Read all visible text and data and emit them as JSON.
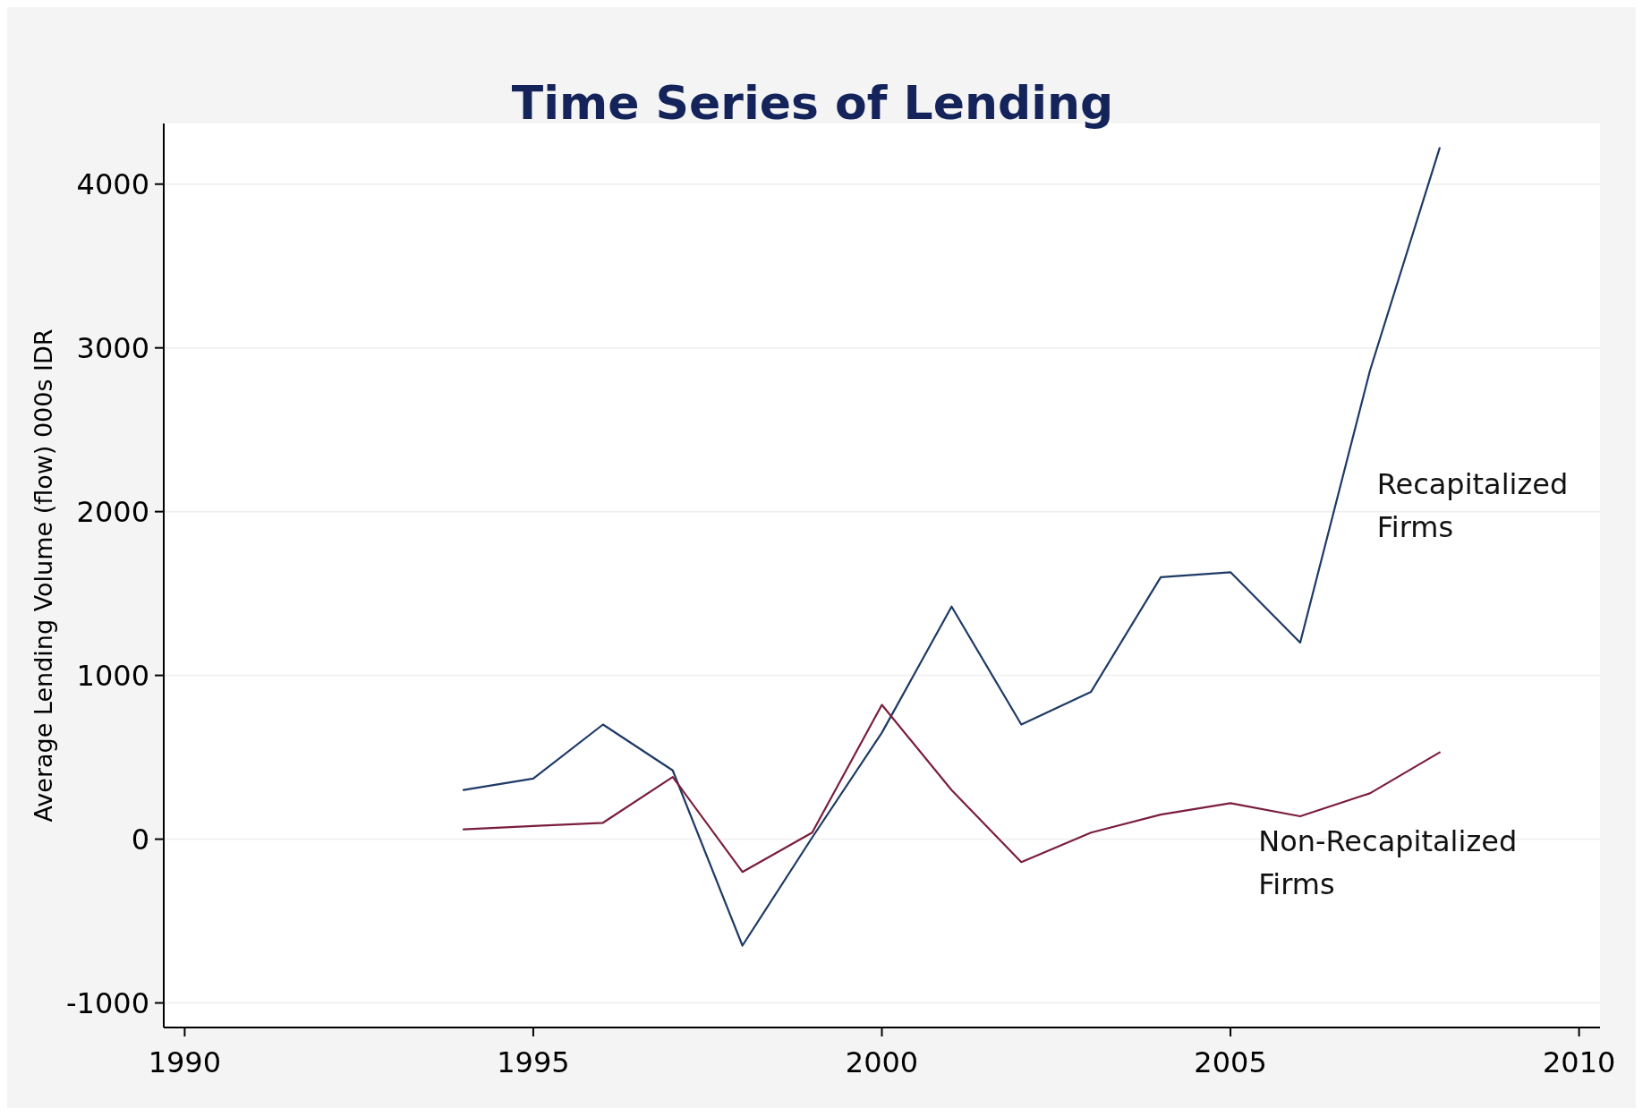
{
  "chart_data": {
    "type": "line",
    "title": "Time Series of Lending",
    "ylabel": "Average Lending Volume (flow) 000s IDR",
    "x": [
      1994,
      1995,
      1996,
      1997,
      1998,
      1999,
      2000,
      2001,
      2002,
      2003,
      2004,
      2005,
      2006,
      2007,
      2008
    ],
    "series": [
      {
        "name": "Recapitalized Firms",
        "color": "#1e3a66",
        "values": [
          300,
          370,
          700,
          420,
          -650,
          10,
          650,
          1420,
          700,
          900,
          1600,
          1630,
          1200,
          2860,
          4220
        ]
      },
      {
        "name": "Non-Recapitalized Firms",
        "color": "#7a1e3c",
        "values": [
          60,
          80,
          100,
          380,
          -200,
          40,
          820,
          300,
          -140,
          40,
          150,
          220,
          140,
          280,
          530
        ]
      }
    ],
    "xlim": [
      1989.7,
      2010.3
    ],
    "xticks": [
      1990,
      1995,
      2000,
      2005,
      2010
    ],
    "ylim": [
      -1150,
      4370
    ],
    "yticks": [
      -1000,
      0,
      1000,
      2000,
      3000,
      4000
    ],
    "grid": "y",
    "marker": "none",
    "line_style": "solid"
  }
}
